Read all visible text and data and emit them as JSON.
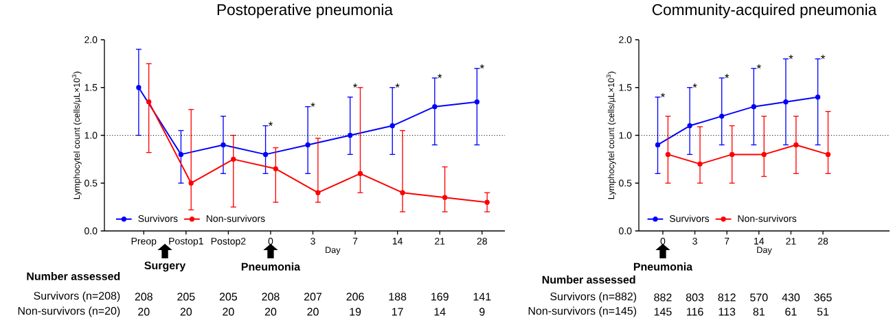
{
  "chart_data": [
    {
      "type": "line",
      "title": "Postoperative pneumonia",
      "xlabel": "Day",
      "ylabel": "Lymphocytel count (cells/μL×10$^{3}$)",
      "categories": [
        "Preop",
        "Postop1",
        "Postop2",
        "0",
        "3",
        "7",
        "14",
        "21",
        "28"
      ],
      "ylim": [
        0,
        2
      ],
      "yticks": [
        {
          "value": 0,
          "label": "0.0"
        },
        {
          "value": 0.5,
          "label": "0.5"
        },
        {
          "value": 1,
          "label": "1.0"
        },
        {
          "value": 1.5,
          "label": "1.5"
        },
        {
          "value": 2,
          "label": "2.0"
        }
      ],
      "series": [
        {
          "name": "Survivors",
          "color": "#0000ff",
          "values": [
            1.5,
            0.8,
            0.9,
            0.8,
            0.9,
            1.0,
            1.1,
            1.3,
            1.35
          ],
          "errors": [
            [
              1.0,
              1.9
            ],
            [
              0.5,
              1.05
            ],
            [
              0.6,
              1.2
            ],
            [
              0.6,
              1.1
            ],
            [
              0.6,
              1.3
            ],
            [
              0.8,
              1.4
            ],
            [
              0.8,
              1.5
            ],
            [
              0.9,
              1.6
            ],
            [
              0.9,
              1.7
            ]
          ]
        },
        {
          "name": "Non-survivors",
          "color": "#ff0000",
          "values": [
            1.35,
            0.5,
            0.75,
            0.65,
            0.4,
            0.6,
            0.4,
            0.35,
            0.3
          ],
          "errors": [
            [
              0.82,
              1.75
            ],
            [
              0.22,
              1.27
            ],
            [
              0.25,
              1.0
            ],
            [
              0.3,
              0.87
            ],
            [
              0.3,
              0.97
            ],
            [
              0.4,
              1.5
            ],
            [
              0.2,
              1.05
            ],
            [
              0.2,
              0.67
            ],
            [
              0.2,
              0.4
            ]
          ]
        }
      ],
      "ref_lines": [
        {
          "axis": "y",
          "value": 1,
          "line_style": "dotted"
        }
      ],
      "legend": "bottom left",
      "marker": "circle",
      "line_style": "solid",
      "grid": false,
      "annotations": [
        "*",
        "*",
        "*",
        "*",
        "*",
        "*",
        "Surgery",
        "Pneumonia",
        "Number assessed",
        "Survivors (n=208)",
        "Non-survivors (n=20)",
        "208",
        "205",
        "205",
        "208",
        "207",
        "206",
        "188",
        "169",
        "141",
        "20",
        "20",
        "20",
        "20",
        "20",
        "19",
        "17",
        "14",
        "9"
      ]
    },
    {
      "type": "line",
      "title": "Community-acquired pneumonia",
      "xlabel": "Day",
      "ylabel": "Lymphocytel count (cells/μL×10$^{3}$)",
      "categories": [
        "0",
        "3",
        "7",
        "14",
        "21",
        "28"
      ],
      "ylim": [
        0,
        2
      ],
      "yticks": [
        {
          "value": 0,
          "label": "0.0"
        },
        {
          "value": 0.5,
          "label": "0.5"
        },
        {
          "value": 1,
          "label": "1.0"
        },
        {
          "value": 1.5,
          "label": "1.5"
        },
        {
          "value": 2,
          "label": "2.0"
        }
      ],
      "series": [
        {
          "name": "Survivors",
          "color": "#0000ff",
          "values": [
            0.9,
            1.1,
            1.2,
            1.3,
            1.35,
            1.4
          ],
          "errors": [
            [
              0.6,
              1.4
            ],
            [
              0.8,
              1.5
            ],
            [
              0.9,
              1.6
            ],
            [
              0.9,
              1.7
            ],
            [
              0.9,
              1.8
            ],
            [
              0.9,
              1.8
            ]
          ]
        },
        {
          "name": "Non-survivors",
          "color": "#ff0000",
          "values": [
            0.8,
            0.7,
            0.8,
            0.8,
            0.9,
            0.8
          ],
          "errors": [
            [
              0.5,
              1.2
            ],
            [
              0.5,
              1.09
            ],
            [
              0.5,
              1.1
            ],
            [
              0.57,
              1.2
            ],
            [
              0.6,
              1.2
            ],
            [
              0.6,
              1.25
            ]
          ]
        }
      ],
      "ref_lines": [
        {
          "axis": "y",
          "value": 1,
          "line_style": "dotted"
        }
      ],
      "legend": "bottom left",
      "marker": "circle",
      "line_style": "solid",
      "grid": false,
      "annotations": [
        "*",
        "*",
        "*",
        "*",
        "*",
        "*",
        "Pneumonia",
        "Number assessed",
        "Survivors (n=882)",
        "Non-survivors (n=145)",
        "882",
        "803",
        "812",
        "570",
        "430",
        "365",
        "145",
        "116",
        "113",
        "81",
        "61",
        "51"
      ]
    }
  ]
}
